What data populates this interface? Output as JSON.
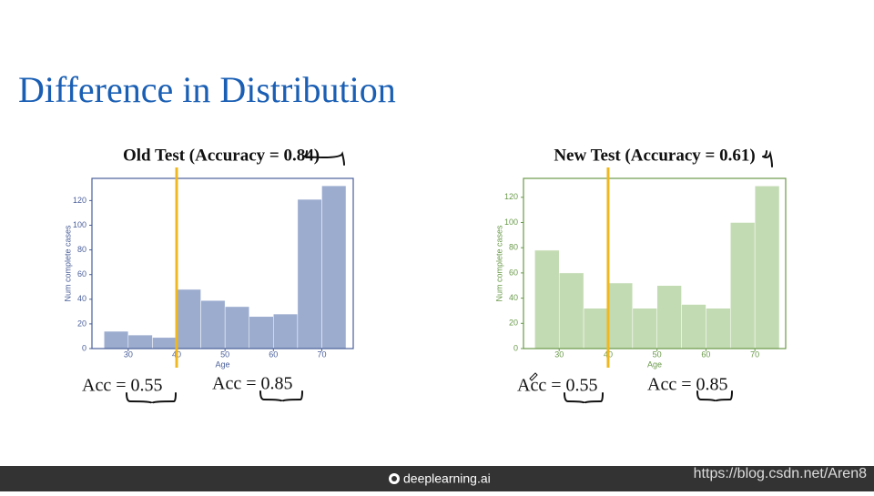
{
  "title": "Difference in Distribution",
  "chart_data": [
    {
      "type": "histogram",
      "title": "Old Test  (Accuracy = 0.84)",
      "xlabel": "Age",
      "ylabel": "Num complete cases",
      "bins": [
        25,
        30,
        35,
        40,
        45,
        50,
        55,
        60,
        65,
        70,
        75
      ],
      "values": [
        14,
        11,
        9,
        48,
        39,
        34,
        26,
        28,
        121,
        132
      ],
      "color": "#9caccf",
      "axis_color": "#4a5f9a",
      "xlim": [
        22.5,
        76.5
      ],
      "xticks": [
        30,
        40,
        50,
        60,
        70
      ],
      "ylim": [
        0,
        138
      ],
      "yticks": [
        0,
        20,
        40,
        60,
        80,
        100,
        120
      ],
      "vline": 40,
      "vline_color": "#f0b820",
      "annotations": [
        "Acc = 0.55",
        "Acc = 0.85"
      ]
    },
    {
      "type": "histogram",
      "title": "New Test (Accuracy = 0.61)",
      "xlabel": "Age",
      "ylabel": "Num complete cases",
      "bins": [
        25,
        30,
        35,
        40,
        45,
        50,
        55,
        60,
        65,
        70,
        75
      ],
      "values": [
        78,
        60,
        32,
        52,
        32,
        50,
        35,
        32,
        100,
        129
      ],
      "color": "#c3dbb3",
      "axis_color": "#6a9a4a",
      "xlim": [
        22.7,
        76.3
      ],
      "xticks": [
        30,
        40,
        50,
        60,
        70
      ],
      "ylim": [
        0,
        135
      ],
      "yticks": [
        0,
        20,
        40,
        60,
        80,
        100,
        120
      ],
      "vline": 40,
      "vline_color": "#f0b820",
      "annotations": [
        "Acc = 0.55",
        "Acc = 0.85"
      ]
    }
  ],
  "footer": "deeplearning.ai",
  "watermark": "https://blog.csdn.net/Aren8"
}
